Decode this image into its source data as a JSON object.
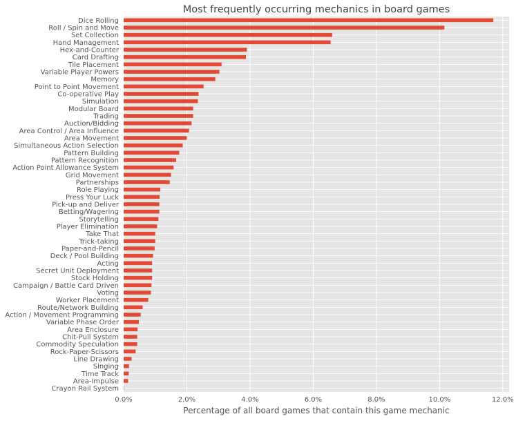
{
  "chart_data": {
    "type": "bar",
    "orientation": "horizontal",
    "title": "Most frequently occurring mechanics in board games",
    "xlabel": "Percentage of all board games that contain this game mechanic",
    "ylabel": "",
    "xlim": [
      0,
      12.2
    ],
    "x_ticks": [
      "0.0%",
      "2.0%",
      "4.0%",
      "6.0%",
      "8.0%",
      "10.0%",
      "12.0%"
    ],
    "x_tick_values": [
      0,
      2,
      4,
      6,
      8,
      10,
      12
    ],
    "grid": true,
    "colors": {
      "bar": "#E24A33",
      "background": "#E5E5E5",
      "grid": "#FFFFFF"
    },
    "categories": [
      "Dice Rolling",
      "Roll / Spin and Move",
      "Set Collection",
      "Hand Management",
      "Hex-and-Counter",
      "Card Drafting",
      "Tile Placement",
      "Variable Player Powers",
      "Memory",
      "Point to Point Movement",
      "Co-operative Play",
      "Simulation",
      "Modular Board",
      "Trading",
      "Auction/Bidding",
      "Area Control / Area Influence",
      "Area Movement",
      "Simultaneous Action Selection",
      "Pattern Building",
      "Pattern Recognition",
      "Action Point Allowance System",
      "Grid Movement",
      "Partnerships",
      "Role Playing",
      "Press Your Luck",
      "Pick-up and Deliver",
      "Betting/Wagering",
      "Storytelling",
      "Player Elimination",
      "Take That",
      "Trick-taking",
      "Paper-and-Pencil",
      "Deck / Pool Building",
      "Acting",
      "Secret Unit Deployment",
      "Stock Holding",
      "Campaign / Battle Card Driven",
      "Voting",
      "Worker Placement",
      "Route/Network Building",
      "Action / Movement Programming",
      "Variable Phase Order",
      "Area Enclosure",
      "Chit-Pull System",
      "Commodity Speculation",
      "Rock-Paper-Scissors",
      "Line Drawing",
      "Singing",
      "Time Track",
      "Area-Impulse",
      "Crayon Rail System"
    ],
    "values": [
      11.7,
      10.15,
      6.6,
      6.55,
      3.9,
      3.87,
      3.1,
      3.03,
      2.9,
      2.53,
      2.37,
      2.35,
      2.2,
      2.2,
      2.15,
      2.07,
      2.0,
      1.87,
      1.76,
      1.66,
      1.58,
      1.5,
      1.46,
      1.16,
      1.14,
      1.13,
      1.13,
      1.1,
      1.06,
      1.0,
      1.0,
      0.98,
      0.93,
      0.9,
      0.9,
      0.9,
      0.88,
      0.86,
      0.78,
      0.6,
      0.54,
      0.48,
      0.44,
      0.43,
      0.43,
      0.38,
      0.25,
      0.17,
      0.16,
      0.14,
      0.01
    ]
  }
}
